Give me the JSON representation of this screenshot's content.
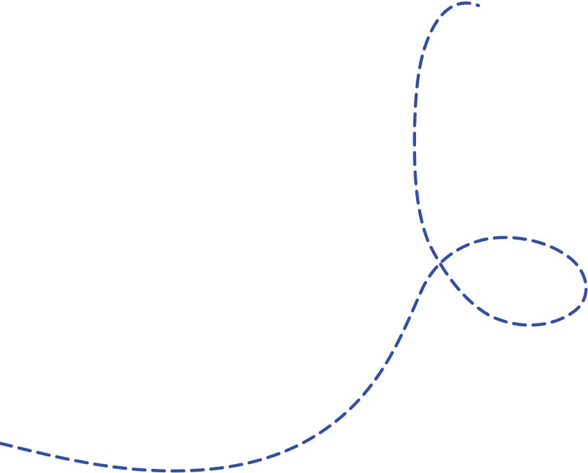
{
  "decoration": {
    "name": "dashed-looping-curve",
    "stroke_color": "#344ea0",
    "background_color": "#ffffff"
  }
}
